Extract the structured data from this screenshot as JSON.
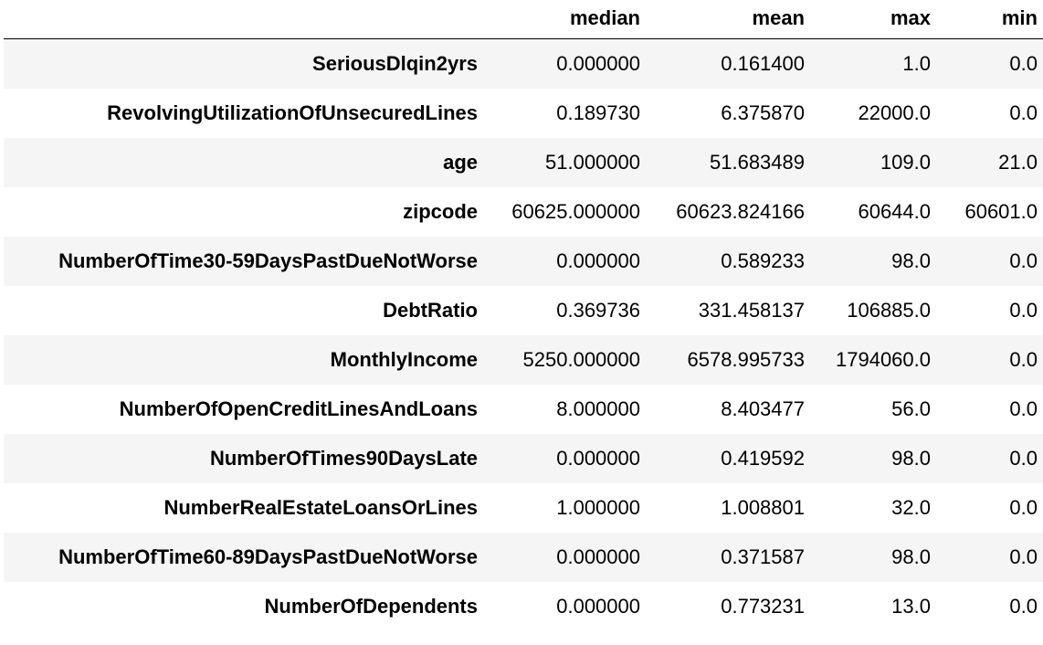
{
  "table": {
    "columns": [
      "median",
      "mean",
      "max",
      "min"
    ],
    "rows": [
      {
        "label": "SeriousDlqin2yrs",
        "values": [
          "0.000000",
          "0.161400",
          "1.0",
          "0.0"
        ]
      },
      {
        "label": "RevolvingUtilizationOfUnsecuredLines",
        "values": [
          "0.189730",
          "6.375870",
          "22000.0",
          "0.0"
        ]
      },
      {
        "label": "age",
        "values": [
          "51.000000",
          "51.683489",
          "109.0",
          "21.0"
        ]
      },
      {
        "label": "zipcode",
        "values": [
          "60625.000000",
          "60623.824166",
          "60644.0",
          "60601.0"
        ]
      },
      {
        "label": "NumberOfTime30-59DaysPastDueNotWorse",
        "values": [
          "0.000000",
          "0.589233",
          "98.0",
          "0.0"
        ]
      },
      {
        "label": "DebtRatio",
        "values": [
          "0.369736",
          "331.458137",
          "106885.0",
          "0.0"
        ]
      },
      {
        "label": "MonthlyIncome",
        "values": [
          "5250.000000",
          "6578.995733",
          "1794060.0",
          "0.0"
        ]
      },
      {
        "label": "NumberOfOpenCreditLinesAndLoans",
        "values": [
          "8.000000",
          "8.403477",
          "56.0",
          "0.0"
        ]
      },
      {
        "label": "NumberOfTimes90DaysLate",
        "values": [
          "0.000000",
          "0.419592",
          "98.0",
          "0.0"
        ]
      },
      {
        "label": "NumberRealEstateLoansOrLines",
        "values": [
          "1.000000",
          "1.008801",
          "32.0",
          "0.0"
        ]
      },
      {
        "label": "NumberOfTime60-89DaysPastDueNotWorse",
        "values": [
          "0.000000",
          "0.371587",
          "98.0",
          "0.0"
        ]
      },
      {
        "label": "NumberOfDependents",
        "values": [
          "0.000000",
          "0.773231",
          "13.0",
          "0.0"
        ]
      }
    ]
  }
}
